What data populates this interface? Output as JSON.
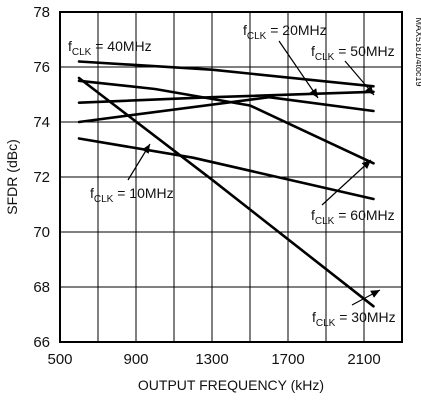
{
  "figure_id": "MAX5181/4toc19",
  "chart_data": {
    "type": "line",
    "xlabel": "OUTPUT FREQUENCY (kHz)",
    "ylabel": "SFDR (dBc)",
    "xlim": [
      500,
      2300
    ],
    "ylim": [
      66,
      78
    ],
    "xticks": [
      500,
      900,
      1300,
      1700,
      2100
    ],
    "yticks": [
      66,
      68,
      70,
      72,
      74,
      76,
      78
    ],
    "grid": true,
    "legend": "none",
    "series": [
      {
        "name": "fCLK = 40MHz",
        "x": [
          600,
          1300,
          2150
        ],
        "y": [
          76.2,
          75.9,
          75.3
        ]
      },
      {
        "name": "fCLK = 20MHz",
        "x": [
          600,
          1300,
          2150
        ],
        "y": [
          74.7,
          74.9,
          75.1
        ]
      },
      {
        "name": "fCLK = 50MHz",
        "x": [
          600,
          1600,
          2150
        ],
        "y": [
          74.0,
          74.9,
          74.4
        ]
      },
      {
        "name": "fCLK = 60MHz",
        "x": [
          600,
          1000,
          1500,
          2150
        ],
        "y": [
          75.5,
          75.2,
          74.6,
          72.5
        ]
      },
      {
        "name": "fCLK = 10MHz",
        "x": [
          600,
          1200,
          2150
        ],
        "y": [
          73.4,
          72.7,
          71.2
        ]
      },
      {
        "name": "fCLK = 30MHz",
        "x": [
          600,
          1300,
          2150
        ],
        "y": [
          75.6,
          71.9,
          67.3
        ]
      }
    ],
    "annotations": [
      {
        "key": "a40",
        "base": "f",
        "sub": "CLK",
        "rest": " = 40MHz"
      },
      {
        "key": "a20",
        "base": "f",
        "sub": "CLK",
        "rest": " = 20MHz"
      },
      {
        "key": "a50",
        "base": "f",
        "sub": "CLK",
        "rest": " = 50MHz"
      },
      {
        "key": "a10",
        "base": "f",
        "sub": "CLK",
        "rest": " = 10MHz"
      },
      {
        "key": "a60",
        "base": "f",
        "sub": "CLK",
        "rest": " = 60MHz"
      },
      {
        "key": "a30",
        "base": "f",
        "sub": "CLK",
        "rest": " = 30MHz"
      }
    ]
  }
}
